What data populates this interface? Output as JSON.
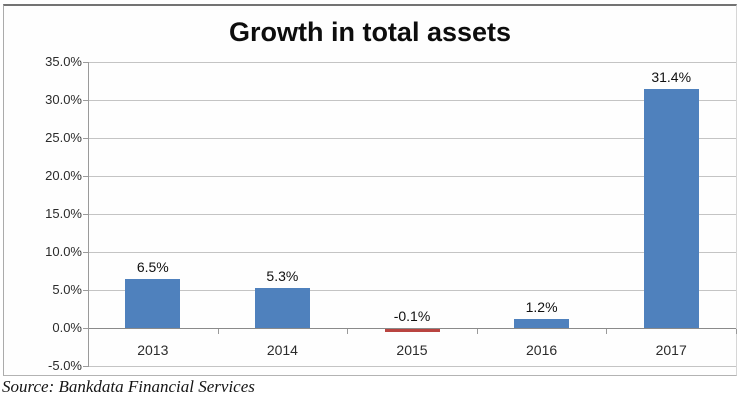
{
  "chart_data": {
    "type": "bar",
    "title": "Growth in total assets",
    "categories": [
      "2013",
      "2014",
      "2015",
      "2016",
      "2017"
    ],
    "values": [
      6.5,
      5.3,
      -0.1,
      1.2,
      31.4
    ],
    "value_labels": [
      "6.5%",
      "5.3%",
      "-0.1%",
      "1.2%",
      "31.4%"
    ],
    "y_ticks": [
      "35.0%",
      "30.0%",
      "25.0%",
      "20.0%",
      "15.0%",
      "10.0%",
      "5.0%",
      "0.0%",
      "-5.0%"
    ],
    "y_tick_values": [
      35,
      30,
      25,
      20,
      15,
      10,
      5,
      0,
      -5
    ],
    "ylim": [
      -5,
      35
    ],
    "grid": "horizontal",
    "legend": "none",
    "positive_bar_color": "#4f81bd",
    "negative_bar_color": "#b94440",
    "gridline_color": "#c4c4c4",
    "axis_color": "#9a9a9a"
  },
  "source": "Source: Bankdata Financial Services"
}
